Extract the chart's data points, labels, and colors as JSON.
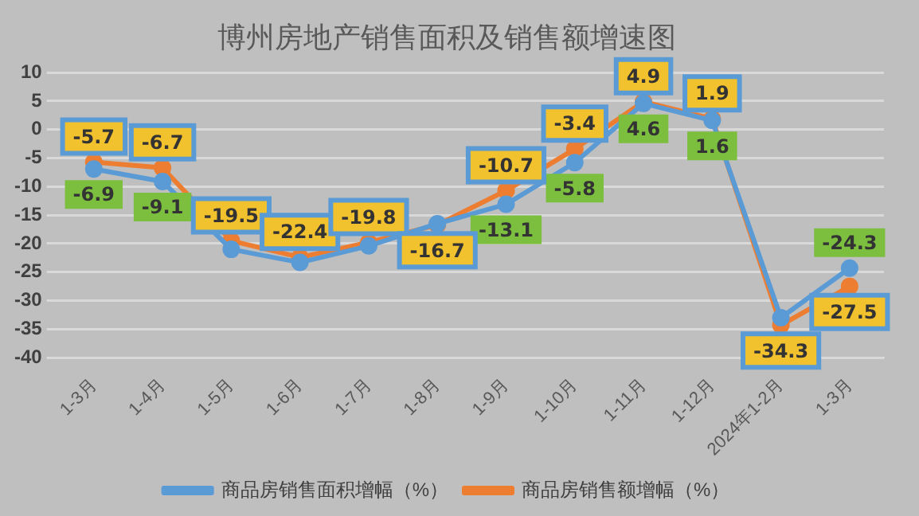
{
  "chart_data": {
    "type": "line",
    "title": "博州房地产销售面积及销售额增速图",
    "categories": [
      "1-3月",
      "1-4月",
      "1-5月",
      "1-6月",
      "1-7月",
      "1-8月",
      "1-9月",
      "1-10月",
      "1-11月",
      "1-12月",
      "2024年1-2月",
      "1-3月"
    ],
    "series": [
      {
        "name": "商品房销售面积增幅（%）",
        "color": "#5b9bd5",
        "values": [
          -6.9,
          -9.1,
          -21.0,
          -23.3,
          -20.4,
          -16.5,
          -13.1,
          -5.8,
          4.6,
          1.6,
          -33.0,
          -24.3
        ],
        "value_labels": [
          "-6.9",
          "-9.1",
          null,
          null,
          null,
          null,
          "-13.1",
          "-5.8",
          "4.6",
          "1.6",
          null,
          "-24.3"
        ]
      },
      {
        "name": "商品房销售额增幅（%）",
        "color": "#ed7d31",
        "values": [
          -5.7,
          -6.7,
          -19.5,
          -22.4,
          -19.8,
          -16.7,
          -10.7,
          -3.4,
          4.9,
          1.9,
          -34.3,
          -27.5
        ],
        "value_labels": [
          "-5.7",
          "-6.7",
          "-19.5",
          "-22.4",
          "-19.8",
          "-16.7",
          "-10.7",
          "-3.4",
          "4.9",
          "1.9",
          "-34.3",
          "-27.5"
        ]
      }
    ],
    "ylim": [
      -40,
      10
    ],
    "yticks": [
      -40,
      -35,
      -30,
      -25,
      -20,
      -15,
      -10,
      -5,
      0,
      5,
      10
    ],
    "grid": "y",
    "legend": "bottom",
    "marker": "circle",
    "line_style": "solid"
  }
}
